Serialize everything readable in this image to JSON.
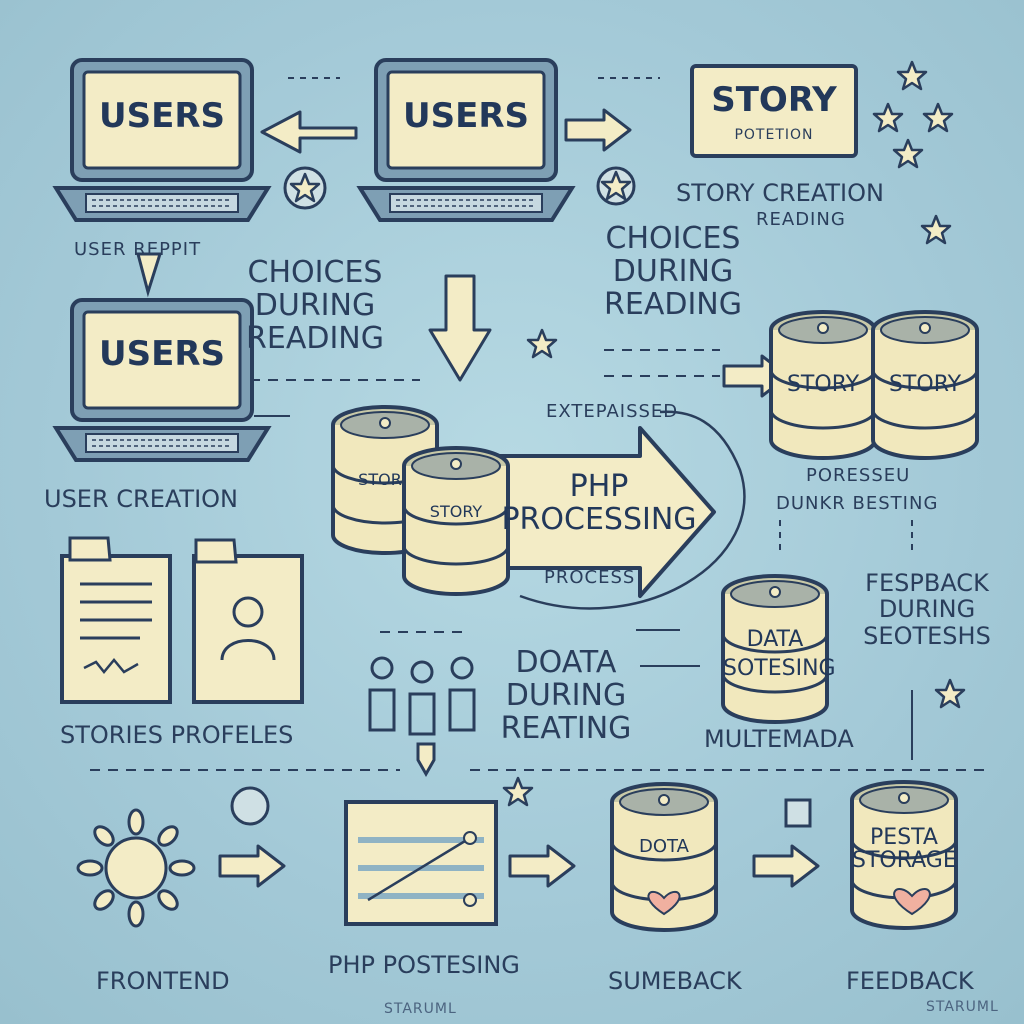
{
  "colors": {
    "background": "#a6ccd9",
    "ink": "#2a3e5c",
    "paper": "#f3ecc6",
    "accent": "#f0b0a0"
  },
  "laptops": [
    {
      "screen": "USERS"
    },
    {
      "screen": "USERS"
    },
    {
      "screen": "USERS"
    }
  ],
  "story_card": {
    "title": "STORY",
    "subtitle": "POTETION"
  },
  "labels": {
    "user_repit": "USER REPPIT",
    "choices_left": [
      "CHOICES",
      "DURING",
      "READING"
    ],
    "choices_right": [
      "CHOICES",
      "DURING",
      "READING"
    ],
    "story_creation": "STORY CREATION",
    "reading": "READING",
    "user_creation": "USER CREATION",
    "extepassed": "EXTEPAISSED",
    "process": "PROCESS",
    "php_processing": [
      "PHP",
      "PROCESSING"
    ],
    "story_drum_1": "STORY",
    "story_drum_2": "STORY",
    "stor": "STOR",
    "story_small": "STORY",
    "poresseu": "PORESSEU",
    "dunkr_besting": "DUNKR BESTING",
    "data_sotesing": [
      "DATA",
      "SOTESING"
    ],
    "fespback": [
      "FESPBACK",
      "DURING",
      "SEOTESHS"
    ],
    "dota_during": [
      "DOATA",
      "DURING",
      "REATING"
    ],
    "multemada": "MULTEMADA",
    "stories_profeles": "STORIES PROFELES",
    "frontend": "FRONTEND",
    "php_postesing": "PHP POSTESING",
    "sumeback": "SUMEBACK",
    "feedback": "FEEDBACK",
    "staruml_1": "STARUML",
    "staruml_2": "STARUML",
    "dota_drum": "DOTA",
    "pesta_storage": [
      "PESTA",
      "STORAGE"
    ]
  }
}
